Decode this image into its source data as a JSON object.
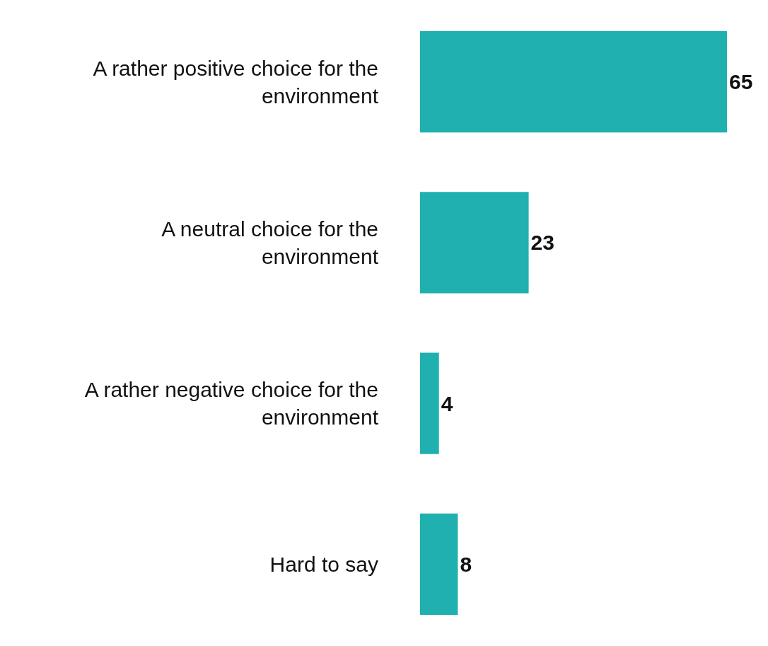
{
  "chart_data": {
    "type": "bar",
    "orientation": "horizontal",
    "categories": [
      "A rather positive choice for the\nenvironment",
      "A neutral choice for the\nenvironment",
      "A rather negative choice for the\nenvironment",
      "Hard to say"
    ],
    "values": [
      65,
      23,
      4,
      8
    ],
    "color": "#20b0b0",
    "data_labels": true
  }
}
